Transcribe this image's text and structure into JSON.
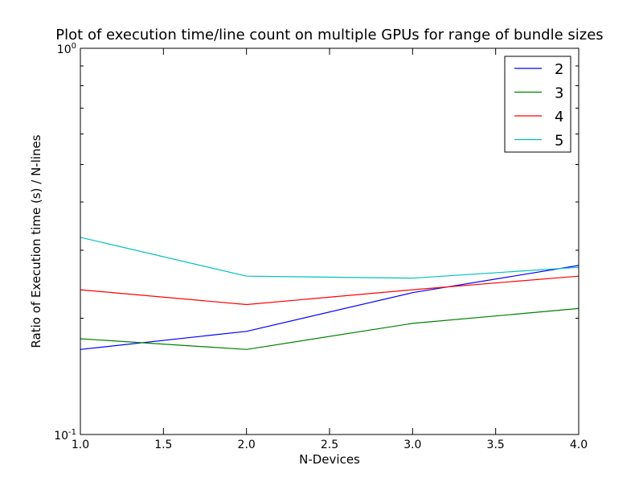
{
  "chart_data": {
    "type": "line",
    "title": "Plot of execution time/line count on multiple GPUs for range of bundle sizes",
    "xlabel": "N-Devices",
    "ylabel": "Ratio of Execution time (s) / N-lines",
    "xlim": [
      1.0,
      4.0
    ],
    "ylim": [
      0.1,
      1.0
    ],
    "yscale": "log",
    "x": [
      1.0,
      2.0,
      3.0,
      4.0
    ],
    "x_ticks": [
      {
        "value": 1.0,
        "label": "1.0"
      },
      {
        "value": 1.5,
        "label": "1.5"
      },
      {
        "value": 2.0,
        "label": "2.0"
      },
      {
        "value": 2.5,
        "label": "2.5"
      },
      {
        "value": 3.0,
        "label": "3.0"
      },
      {
        "value": 3.5,
        "label": "3.5"
      },
      {
        "value": 4.0,
        "label": "4.0"
      }
    ],
    "y_ticks": [
      {
        "value": 1.0,
        "base": "10",
        "exp": "0"
      },
      {
        "value": 0.1,
        "base": "10",
        "exp": "-1"
      }
    ],
    "y_minor_ticks": [
      0.2,
      0.3,
      0.4,
      0.5,
      0.6,
      0.7,
      0.8,
      0.9
    ],
    "grid": false,
    "legend_position": "top-right",
    "series": [
      {
        "name": "2",
        "color": "#0000ff",
        "values": [
          0.166,
          0.185,
          0.233,
          0.274
        ]
      },
      {
        "name": "3",
        "color": "#008000",
        "values": [
          0.177,
          0.166,
          0.194,
          0.212
        ]
      },
      {
        "name": "4",
        "color": "#ff0000",
        "values": [
          0.237,
          0.217,
          0.237,
          0.257
        ]
      },
      {
        "name": "5",
        "color": "#00bfbf",
        "values": [
          0.324,
          0.257,
          0.254,
          0.271
        ]
      }
    ]
  }
}
